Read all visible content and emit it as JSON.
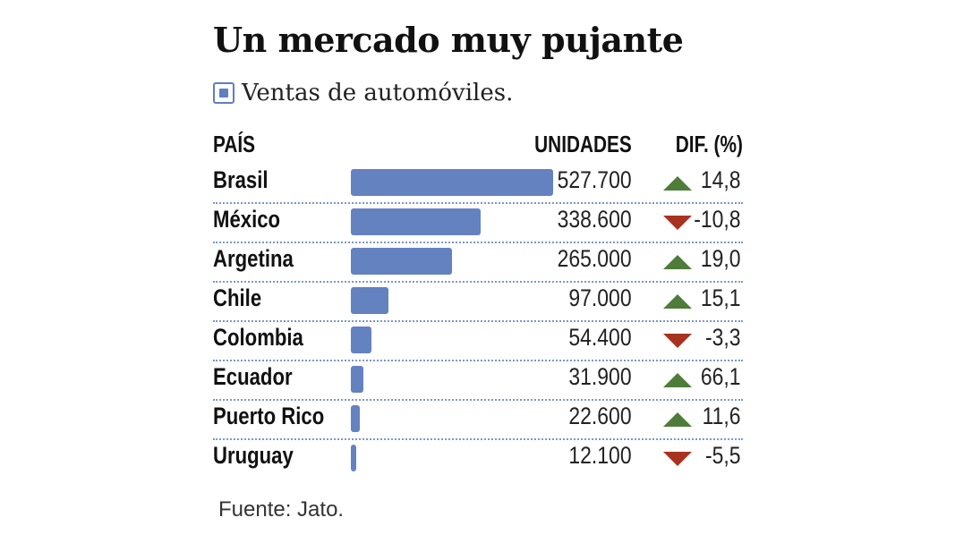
{
  "title": "Un mercado muy pujante",
  "legend": {
    "label": "Ventas de automóviles."
  },
  "headers": {
    "country": "PAÍS",
    "units": "UNIDADES",
    "diff": "DIF. (%)"
  },
  "source": "Fuente: Jato.",
  "colors": {
    "bar": "#6482c0",
    "up": "#4e7d3a",
    "down": "#a8321f"
  },
  "chart_data": {
    "type": "bar",
    "title": "Un mercado muy pujante",
    "subtitle": "Ventas de automóviles.",
    "categories": [
      "Brasil",
      "México",
      "Argetina",
      "Chile",
      "Colombia",
      "Ecuador",
      "Puerto Rico",
      "Uruguay"
    ],
    "values": [
      527700,
      338600,
      265000,
      97000,
      54400,
      31900,
      22600,
      12100
    ],
    "value_labels": [
      "527.700",
      "338.600",
      "265.000",
      "97.000",
      "54.400",
      "31.900",
      "22.600",
      "12.100"
    ],
    "diff": [
      14.8,
      -10.8,
      19.0,
      15.1,
      -3.3,
      66.1,
      11.6,
      -5.5
    ],
    "diff_labels": [
      "14,8",
      "-10,8",
      "19,0",
      "15,1",
      "-3,3",
      "66,1",
      "11,6",
      "-5,5"
    ],
    "orientation": "horizontal",
    "grid": false
  }
}
